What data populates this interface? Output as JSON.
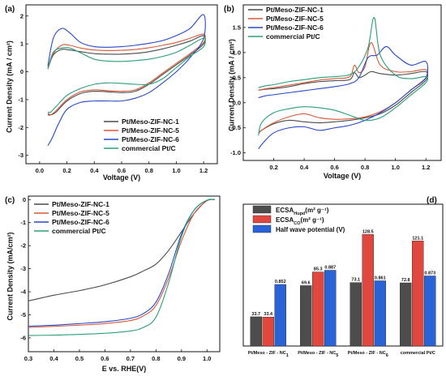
{
  "chart_data": [
    {
      "id": "a",
      "type": "line",
      "panel_label": "(a)",
      "xlabel": "Voltage (V)",
      "ylabel": "Current Density (mA / cm²)",
      "xlim": [
        -0.1,
        1.3
      ],
      "ylim": [
        -3.3,
        2.4
      ],
      "xticks": [
        "0.0",
        "0.2",
        "0.4",
        "0.6",
        "0.8",
        "1.0",
        "1.2"
      ],
      "yticks": [
        "-3",
        "-2",
        "-1",
        "0",
        "1",
        "2"
      ],
      "legend_position": "bottom-right",
      "series": [
        {
          "name": "Pt/Meso-ZIF-NC-1",
          "color": "#4a4a4a",
          "x": [
            0.06,
            0.1,
            0.16,
            0.22,
            0.3,
            0.4,
            0.5,
            0.6,
            0.7,
            0.8,
            0.9,
            1.0,
            1.1,
            1.2,
            1.2,
            1.1,
            1.0,
            0.9,
            0.8,
            0.7,
            0.6,
            0.5,
            0.4,
            0.3,
            0.2,
            0.12,
            0.08,
            0.06
          ],
          "y": [
            0.1,
            0.6,
            0.8,
            0.78,
            0.72,
            0.65,
            0.63,
            0.63,
            0.66,
            0.72,
            0.82,
            0.95,
            1.1,
            1.3,
            1.0,
            0.6,
            0.25,
            -0.1,
            -0.45,
            -0.7,
            -0.75,
            -0.72,
            -0.7,
            -0.78,
            -1.05,
            -1.45,
            -1.55,
            -1.5
          ]
        },
        {
          "name": "Pt/Meso-ZIF-NC-5",
          "color": "#d9593a",
          "x": [
            0.06,
            0.1,
            0.16,
            0.22,
            0.3,
            0.4,
            0.5,
            0.6,
            0.7,
            0.8,
            0.9,
            1.0,
            1.1,
            1.2,
            1.2,
            1.1,
            1.0,
            0.9,
            0.8,
            0.7,
            0.6,
            0.5,
            0.4,
            0.3,
            0.2,
            0.12,
            0.08,
            0.06
          ],
          "y": [
            0.1,
            0.65,
            0.95,
            0.95,
            0.85,
            0.78,
            0.76,
            0.77,
            0.8,
            0.86,
            0.95,
            1.05,
            1.2,
            1.35,
            1.05,
            0.65,
            0.3,
            -0.05,
            -0.4,
            -0.65,
            -0.7,
            -0.68,
            -0.65,
            -0.72,
            -1.0,
            -1.4,
            -1.55,
            -1.55
          ]
        },
        {
          "name": "Pt/Meso-ZIF-NC-6",
          "color": "#2648c8",
          "x": [
            0.06,
            0.1,
            0.16,
            0.22,
            0.3,
            0.4,
            0.5,
            0.6,
            0.7,
            0.8,
            0.9,
            1.0,
            1.1,
            1.2,
            1.2,
            1.1,
            1.0,
            0.9,
            0.8,
            0.7,
            0.6,
            0.5,
            0.4,
            0.3,
            0.2,
            0.14,
            0.09,
            0.06
          ],
          "y": [
            0.2,
            1.2,
            1.55,
            1.4,
            1.05,
            0.9,
            0.88,
            0.9,
            0.95,
            1.02,
            1.12,
            1.3,
            1.55,
            2.05,
            1.2,
            0.5,
            0.0,
            -0.4,
            -0.75,
            -0.95,
            -1.05,
            -1.05,
            -1.05,
            -1.1,
            -1.35,
            -1.85,
            -2.4,
            -2.65
          ]
        },
        {
          "name": "commercial Pt/C",
          "color": "#2a9d7a",
          "x": [
            0.06,
            0.1,
            0.16,
            0.22,
            0.3,
            0.4,
            0.5,
            0.6,
            0.7,
            0.8,
            0.9,
            1.0,
            1.1,
            1.2,
            1.2,
            1.1,
            1.0,
            0.9,
            0.8,
            0.7,
            0.6,
            0.5,
            0.4,
            0.3,
            0.2,
            0.12,
            0.08,
            0.06
          ],
          "y": [
            0.1,
            0.7,
            0.85,
            0.85,
            0.68,
            0.45,
            0.38,
            0.37,
            0.4,
            0.45,
            0.55,
            0.7,
            0.95,
            1.2,
            0.9,
            0.55,
            0.15,
            -0.25,
            -0.45,
            -0.45,
            -0.42,
            -0.4,
            -0.45,
            -0.6,
            -0.85,
            -1.25,
            -1.45,
            -1.45
          ]
        }
      ]
    },
    {
      "id": "b",
      "type": "line",
      "panel_label": "(b)",
      "xlabel": "Voltage (V)",
      "ylabel": "Current Density (mA / cm²)",
      "xlim": [
        0.0,
        1.3
      ],
      "ylim": [
        -1.15,
        1.95
      ],
      "xticks": [
        "0.2",
        "0.4",
        "0.6",
        "0.8",
        "1.0",
        "1.2"
      ],
      "yticks": [
        "-1.0",
        "-0.5",
        "0.0",
        "0.5",
        "1.0",
        "1.5"
      ],
      "legend_position": "top-left",
      "series": [
        {
          "name": "Pt/Meso-ZIF-NC-1",
          "color": "#4a4a4a",
          "x": [
            0.1,
            0.15,
            0.2,
            0.3,
            0.4,
            0.5,
            0.6,
            0.7,
            0.73,
            0.76,
            0.8,
            0.84,
            0.9,
            1.0,
            1.1,
            1.2,
            1.2,
            1.1,
            1.0,
            0.9,
            0.8,
            0.7,
            0.6,
            0.5,
            0.4,
            0.3,
            0.2,
            0.12,
            0.1
          ],
          "y": [
            0.25,
            0.27,
            0.28,
            0.32,
            0.38,
            0.42,
            0.44,
            0.46,
            0.6,
            0.5,
            0.55,
            0.62,
            0.58,
            0.55,
            0.58,
            0.62,
            0.45,
            0.2,
            -0.05,
            -0.22,
            -0.3,
            -0.35,
            -0.38,
            -0.4,
            -0.38,
            -0.35,
            -0.42,
            -0.55,
            -0.6
          ]
        },
        {
          "name": "Pt/Meso-ZIF-NC-5",
          "color": "#d9593a",
          "x": [
            0.1,
            0.15,
            0.2,
            0.3,
            0.4,
            0.5,
            0.6,
            0.7,
            0.73,
            0.76,
            0.8,
            0.84,
            0.9,
            1.0,
            1.1,
            1.2,
            1.2,
            1.1,
            1.0,
            0.9,
            0.8,
            0.7,
            0.6,
            0.5,
            0.4,
            0.3,
            0.2,
            0.12,
            0.1
          ],
          "y": [
            0.25,
            0.28,
            0.3,
            0.35,
            0.4,
            0.45,
            0.48,
            0.52,
            0.75,
            0.6,
            0.72,
            1.2,
            0.75,
            0.62,
            0.62,
            0.66,
            0.5,
            0.25,
            0.0,
            -0.18,
            -0.28,
            -0.32,
            -0.33,
            -0.3,
            -0.22,
            -0.28,
            -0.4,
            -0.55,
            -0.62
          ]
        },
        {
          "name": "Pt/Meso-ZIF-NC-6",
          "color": "#2648c8",
          "x": [
            0.1,
            0.15,
            0.2,
            0.3,
            0.4,
            0.5,
            0.6,
            0.7,
            0.76,
            0.82,
            0.88,
            0.94,
            1.0,
            1.1,
            1.2,
            1.2,
            1.1,
            1.0,
            0.9,
            0.8,
            0.7,
            0.6,
            0.5,
            0.4,
            0.3,
            0.2,
            0.13,
            0.1
          ],
          "y": [
            0.1,
            0.14,
            0.16,
            0.2,
            0.24,
            0.28,
            0.32,
            0.38,
            0.5,
            0.9,
            0.95,
            1.12,
            0.95,
            0.75,
            0.82,
            0.5,
            0.25,
            0.0,
            -0.2,
            -0.35,
            -0.45,
            -0.5,
            -0.55,
            -0.48,
            -0.5,
            -0.6,
            -0.8,
            -0.92
          ]
        },
        {
          "name": "commercial Pt/C",
          "color": "#2a9d7a",
          "x": [
            0.1,
            0.15,
            0.2,
            0.3,
            0.4,
            0.5,
            0.6,
            0.7,
            0.76,
            0.82,
            0.86,
            0.9,
            1.0,
            1.1,
            1.2,
            1.2,
            1.1,
            1.0,
            0.9,
            0.8,
            0.7,
            0.6,
            0.5,
            0.4,
            0.3,
            0.2,
            0.12,
            0.1
          ],
          "y": [
            0.3,
            0.34,
            0.36,
            0.42,
            0.46,
            0.5,
            0.52,
            0.56,
            0.72,
            1.1,
            1.7,
            0.95,
            0.55,
            0.48,
            0.52,
            0.4,
            0.15,
            -0.1,
            -0.3,
            -0.35,
            -0.25,
            -0.15,
            -0.1,
            -0.08,
            -0.12,
            -0.2,
            -0.4,
            -0.65
          ]
        }
      ]
    },
    {
      "id": "c",
      "type": "line",
      "panel_label": "(c)",
      "xlabel": "E vs. RHE(V)",
      "ylabel": "Current Density (mA/cm²)",
      "xlim": [
        0.3,
        1.05
      ],
      "ylim": [
        -6.6,
        0.15
      ],
      "xticks": [
        "0.3",
        "0.4",
        "0.5",
        "0.6",
        "0.7",
        "0.8",
        "0.9",
        "1.0"
      ],
      "yticks": [
        "-6",
        "-5",
        "-4",
        "-3",
        "-2",
        "-1",
        "0"
      ],
      "legend_position": "top-left",
      "series": [
        {
          "name": "Pt/Meso-ZIF-NC-1",
          "color": "#4a4a4a",
          "x": [
            0.3,
            0.4,
            0.5,
            0.6,
            0.7,
            0.75,
            0.8,
            0.85,
            0.9,
            0.95,
            1.0,
            1.03
          ],
          "y": [
            -4.4,
            -4.15,
            -3.95,
            -3.7,
            -3.35,
            -3.1,
            -2.8,
            -2.2,
            -1.4,
            -0.6,
            -0.05,
            0.0
          ]
        },
        {
          "name": "Pt/Meso-ZIF-NC-5",
          "color": "#d9593a",
          "x": [
            0.3,
            0.4,
            0.5,
            0.6,
            0.7,
            0.75,
            0.8,
            0.85,
            0.9,
            0.95,
            1.0,
            1.03
          ],
          "y": [
            -5.55,
            -5.5,
            -5.45,
            -5.38,
            -5.25,
            -5.05,
            -4.6,
            -3.4,
            -1.8,
            -0.6,
            -0.05,
            0.0
          ]
        },
        {
          "name": "Pt/Meso-ZIF-NC-6",
          "color": "#2648c8",
          "x": [
            0.3,
            0.4,
            0.5,
            0.6,
            0.7,
            0.75,
            0.8,
            0.85,
            0.9,
            0.95,
            1.0,
            1.03
          ],
          "y": [
            -5.5,
            -5.45,
            -5.38,
            -5.3,
            -5.15,
            -4.95,
            -4.45,
            -3.2,
            -1.5,
            -0.45,
            -0.03,
            0.0
          ]
        },
        {
          "name": "commercial Pt/C",
          "color": "#2a9d7a",
          "x": [
            0.3,
            0.4,
            0.5,
            0.6,
            0.7,
            0.75,
            0.8,
            0.85,
            0.9,
            0.95,
            1.0,
            1.03
          ],
          "y": [
            -5.9,
            -5.88,
            -5.85,
            -5.8,
            -5.7,
            -5.55,
            -5.1,
            -3.6,
            -1.6,
            -0.45,
            -0.03,
            0.0
          ]
        }
      ]
    },
    {
      "id": "d",
      "type": "bar",
      "panel_label": "(d)",
      "legend_position": "top-left",
      "categories": [
        {
          "main": "Pt/Meso - ZIF - NC",
          "sub": "1"
        },
        {
          "main": "Pt/Meso - ZIF - NC",
          "sub": "5"
        },
        {
          "main": "Pt/Meso - ZIF - NC",
          "sub": "6"
        },
        {
          "main": "commercial Pt/C",
          "sub": ""
        }
      ],
      "series": [
        {
          "name": "ECSA",
          "name_sub": "Hupd",
          "name_unit": "(m² g⁻¹)",
          "color": "#4d4d4d",
          "values": [
            33.7,
            69.6,
            73.1,
            72.8
          ],
          "labels": [
            "33.7",
            "69.6",
            "73.1",
            "72.8"
          ]
        },
        {
          "name": "ECSA",
          "name_sub": "CO",
          "name_unit": "(m² g⁻¹)",
          "color": "#e0483f",
          "values": [
            33.4,
            85.3,
            128.5,
            121.1
          ],
          "labels": [
            "33.4",
            "85.3",
            "128.5",
            "121.1"
          ]
        },
        {
          "name": "Half wave potential (V)",
          "name_sub": "",
          "name_unit": "",
          "color": "#2a63d6",
          "values": [
            0.852,
            0.887,
            0.861,
            0.873
          ],
          "labels": [
            "0.852",
            "0.887",
            "0.861",
            "0.873"
          ]
        }
      ]
    }
  ]
}
